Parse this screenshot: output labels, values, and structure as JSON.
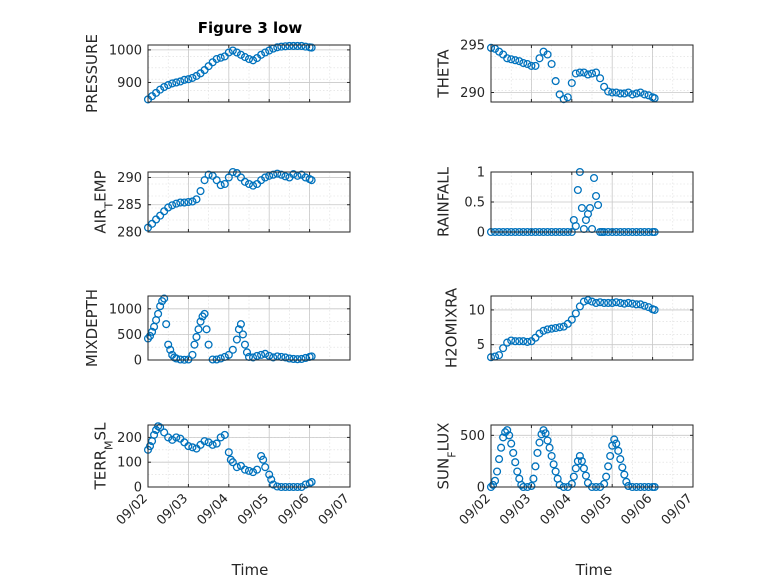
{
  "figure_title": "Figure 3 low",
  "x_axis_label": "Time",
  "x_tick_labels": [
    "09/02",
    "09/03",
    "09/04",
    "09/05",
    "09/06",
    "09/07"
  ],
  "colors": {
    "marker": "#0072BD",
    "axes": "#262626",
    "grid": "#dcdcdc"
  },
  "chart_data": [
    {
      "type": "scatter",
      "ylabel": "PRESSURE",
      "xlim": [
        0,
        5
      ],
      "ylim": [
        840,
        1015
      ],
      "yticks": [
        900,
        1000
      ],
      "grid": true,
      "x": [
        0,
        0.1,
        0.2,
        0.3,
        0.4,
        0.5,
        0.6,
        0.7,
        0.8,
        0.9,
        1.0,
        1.1,
        1.2,
        1.3,
        1.4,
        1.5,
        1.6,
        1.7,
        1.8,
        1.9,
        2.0,
        2.1,
        2.2,
        2.3,
        2.4,
        2.5,
        2.6,
        2.7,
        2.8,
        2.9,
        3.0,
        3.1,
        3.2,
        3.3,
        3.4,
        3.5,
        3.6,
        3.7,
        3.8,
        3.9,
        4.0,
        4.05
      ],
      "y": [
        848,
        858,
        868,
        878,
        886,
        892,
        897,
        900,
        903,
        908,
        910,
        914,
        920,
        928,
        938,
        950,
        962,
        972,
        976,
        980,
        992,
        998,
        992,
        985,
        978,
        972,
        968,
        975,
        985,
        992,
        998,
        1004,
        1008,
        1010,
        1011,
        1012,
        1012,
        1012,
        1012,
        1010,
        1008,
        1007
      ]
    },
    {
      "type": "scatter",
      "ylabel": "THETA",
      "xlim": [
        0,
        5
      ],
      "ylim": [
        289,
        295
      ],
      "yticks": [
        290,
        295
      ],
      "grid": true,
      "x": [
        0,
        0.1,
        0.2,
        0.3,
        0.4,
        0.5,
        0.6,
        0.7,
        0.8,
        0.9,
        1.0,
        1.1,
        1.2,
        1.3,
        1.4,
        1.5,
        1.6,
        1.7,
        1.8,
        1.9,
        2.0,
        2.1,
        2.2,
        2.3,
        2.4,
        2.5,
        2.6,
        2.7,
        2.8,
        2.9,
        3.0,
        3.1,
        3.2,
        3.3,
        3.4,
        3.5,
        3.6,
        3.7,
        3.8,
        3.9,
        4.0,
        4.05
      ],
      "y": [
        294.7,
        294.6,
        294.3,
        294.0,
        293.6,
        293.5,
        293.4,
        293.3,
        293.1,
        293.0,
        292.8,
        292.8,
        293.6,
        294.3,
        294.0,
        293.0,
        291.2,
        289.8,
        289.3,
        289.5,
        291.0,
        292.0,
        292.1,
        292.1,
        291.9,
        292.0,
        292.1,
        291.5,
        290.6,
        290.1,
        290.0,
        290.0,
        289.9,
        289.9,
        290.0,
        289.8,
        289.9,
        290.0,
        289.8,
        289.7,
        289.5,
        289.4
      ]
    },
    {
      "type": "scatter",
      "ylabel": "AIR_TEMP",
      "xlim": [
        0,
        5
      ],
      "ylim": [
        280,
        291
      ],
      "yticks": [
        280,
        285,
        290
      ],
      "grid": true,
      "x": [
        0,
        0.1,
        0.2,
        0.3,
        0.4,
        0.5,
        0.6,
        0.7,
        0.8,
        0.9,
        1.0,
        1.1,
        1.2,
        1.3,
        1.4,
        1.5,
        1.6,
        1.7,
        1.8,
        1.9,
        2.0,
        2.1,
        2.2,
        2.3,
        2.4,
        2.5,
        2.6,
        2.7,
        2.8,
        2.9,
        3.0,
        3.1,
        3.2,
        3.3,
        3.4,
        3.5,
        3.6,
        3.7,
        3.8,
        3.9,
        4.0,
        4.05
      ],
      "y": [
        280.8,
        281.5,
        282.3,
        283.0,
        283.8,
        284.5,
        284.9,
        285.2,
        285.4,
        285.4,
        285.5,
        285.6,
        286.0,
        287.5,
        289.5,
        290.5,
        290.3,
        289.5,
        288.6,
        288.8,
        290.0,
        291.0,
        290.8,
        290.0,
        289.2,
        288.8,
        288.5,
        288.8,
        289.5,
        290.0,
        290.3,
        290.5,
        290.7,
        290.5,
        290.2,
        290.0,
        290.6,
        290.3,
        290.5,
        290.0,
        289.7,
        289.5
      ]
    },
    {
      "type": "scatter",
      "ylabel": "RAINFALL",
      "xlim": [
        0,
        5
      ],
      "ylim": [
        0,
        1
      ],
      "yticks": [
        0,
        0.5,
        1
      ],
      "grid": true,
      "x": [
        0,
        0.1,
        0.2,
        0.3,
        0.4,
        0.5,
        0.6,
        0.7,
        0.8,
        0.9,
        1.0,
        1.1,
        1.2,
        1.3,
        1.4,
        1.5,
        1.6,
        1.7,
        1.8,
        1.9,
        2.0,
        2.05,
        2.1,
        2.15,
        2.2,
        2.25,
        2.3,
        2.35,
        2.4,
        2.45,
        2.5,
        2.55,
        2.6,
        2.65,
        2.7,
        2.75,
        2.8,
        2.9,
        3.0,
        3.1,
        3.2,
        3.3,
        3.4,
        3.5,
        3.6,
        3.7,
        3.8,
        3.9,
        4.0,
        4.05
      ],
      "y": [
        0,
        0,
        0,
        0,
        0,
        0,
        0,
        0,
        0,
        0,
        0,
        0,
        0,
        0,
        0,
        0,
        0,
        0,
        0,
        0,
        0,
        0.2,
        0.1,
        0.7,
        1.0,
        0.4,
        0.05,
        0.2,
        0.3,
        0.4,
        0.05,
        0.9,
        0.6,
        0.45,
        0,
        0,
        0,
        0,
        0,
        0,
        0,
        0,
        0,
        0,
        0,
        0,
        0,
        0,
        0,
        0
      ]
    },
    {
      "type": "scatter",
      "ylabel": "MIXDEPTH",
      "xlim": [
        0,
        5
      ],
      "ylim": [
        0,
        1250
      ],
      "yticks": [
        0,
        500,
        1000
      ],
      "grid": true,
      "x": [
        0,
        0.05,
        0.1,
        0.15,
        0.2,
        0.25,
        0.3,
        0.35,
        0.4,
        0.45,
        0.5,
        0.55,
        0.6,
        0.65,
        0.7,
        0.8,
        0.9,
        1.0,
        1.1,
        1.15,
        1.2,
        1.25,
        1.3,
        1.35,
        1.4,
        1.45,
        1.5,
        1.6,
        1.7,
        1.8,
        1.9,
        2.0,
        2.1,
        2.2,
        2.25,
        2.3,
        2.35,
        2.4,
        2.45,
        2.5,
        2.6,
        2.7,
        2.8,
        2.9,
        3.0,
        3.1,
        3.2,
        3.3,
        3.4,
        3.5,
        3.6,
        3.7,
        3.8,
        3.9,
        4.0,
        4.05
      ],
      "y": [
        420,
        470,
        550,
        650,
        780,
        900,
        1050,
        1150,
        1200,
        700,
        300,
        200,
        100,
        50,
        30,
        10,
        5,
        10,
        100,
        300,
        450,
        600,
        750,
        850,
        900,
        600,
        300,
        10,
        10,
        30,
        60,
        100,
        200,
        400,
        600,
        700,
        500,
        300,
        150,
        60,
        50,
        80,
        100,
        120,
        80,
        50,
        70,
        60,
        50,
        30,
        20,
        15,
        20,
        40,
        60,
        70
      ]
    },
    {
      "type": "scatter",
      "ylabel": "H2OMIXRA",
      "xlim": [
        0,
        5
      ],
      "ylim": [
        2.8,
        12
      ],
      "yticks": [
        5,
        10
      ],
      "grid": true,
      "x": [
        0,
        0.1,
        0.2,
        0.3,
        0.4,
        0.5,
        0.6,
        0.7,
        0.8,
        0.9,
        1.0,
        1.1,
        1.2,
        1.3,
        1.4,
        1.5,
        1.6,
        1.7,
        1.8,
        1.9,
        2.0,
        2.1,
        2.2,
        2.3,
        2.4,
        2.5,
        2.6,
        2.7,
        2.8,
        2.9,
        3.0,
        3.1,
        3.2,
        3.3,
        3.4,
        3.5,
        3.6,
        3.7,
        3.8,
        3.9,
        4.0,
        4.05
      ],
      "y": [
        3.2,
        3.3,
        3.5,
        4.5,
        5.3,
        5.6,
        5.5,
        5.5,
        5.5,
        5.4,
        5.5,
        6.0,
        6.6,
        7.0,
        7.2,
        7.3,
        7.4,
        7.5,
        7.6,
        8.0,
        8.6,
        9.5,
        10.5,
        11.2,
        11.4,
        11.2,
        11.0,
        11.1,
        11.0,
        11.0,
        11.0,
        11.1,
        11.0,
        10.9,
        11.0,
        10.9,
        10.8,
        10.8,
        10.6,
        10.4,
        10.1,
        10.0
      ]
    },
    {
      "type": "scatter",
      "ylabel": "TERR_MSL",
      "xlim": [
        0,
        5
      ],
      "ylim": [
        0,
        250
      ],
      "yticks": [
        0,
        100,
        200
      ],
      "grid": true,
      "x": [
        0,
        0.05,
        0.1,
        0.15,
        0.2,
        0.25,
        0.3,
        0.4,
        0.5,
        0.6,
        0.7,
        0.8,
        0.9,
        1.0,
        1.1,
        1.2,
        1.3,
        1.4,
        1.5,
        1.6,
        1.7,
        1.8,
        1.9,
        2.0,
        2.05,
        2.1,
        2.2,
        2.3,
        2.4,
        2.5,
        2.6,
        2.7,
        2.8,
        2.85,
        2.9,
        3.0,
        3.05,
        3.1,
        3.2,
        3.3,
        3.4,
        3.5,
        3.6,
        3.7,
        3.8,
        3.9,
        4.0,
        4.05
      ],
      "y": [
        150,
        165,
        185,
        210,
        230,
        245,
        240,
        220,
        200,
        190,
        200,
        195,
        180,
        165,
        160,
        155,
        170,
        185,
        180,
        170,
        175,
        200,
        210,
        140,
        110,
        100,
        80,
        85,
        70,
        65,
        60,
        70,
        125,
        110,
        80,
        50,
        30,
        10,
        2,
        0,
        0,
        0,
        0,
        0,
        0,
        10,
        15,
        20
      ]
    },
    {
      "type": "scatter",
      "ylabel": "SUN_FLUX",
      "xlim": [
        0,
        5
      ],
      "ylim": [
        0,
        600
      ],
      "yticks": [
        0,
        500
      ],
      "grid": true,
      "x": [
        0,
        0.05,
        0.1,
        0.15,
        0.2,
        0.25,
        0.3,
        0.35,
        0.4,
        0.45,
        0.5,
        0.55,
        0.6,
        0.65,
        0.7,
        0.75,
        0.8,
        0.9,
        1.0,
        1.05,
        1.1,
        1.15,
        1.2,
        1.25,
        1.3,
        1.35,
        1.4,
        1.45,
        1.5,
        1.55,
        1.6,
        1.65,
        1.7,
        1.8,
        1.9,
        2.0,
        2.05,
        2.1,
        2.15,
        2.2,
        2.25,
        2.3,
        2.35,
        2.4,
        2.5,
        2.6,
        2.7,
        2.8,
        2.85,
        2.9,
        2.95,
        3.0,
        3.05,
        3.1,
        3.15,
        3.2,
        3.25,
        3.3,
        3.35,
        3.4,
        3.5,
        3.6,
        3.7,
        3.8,
        3.9,
        4.0,
        4.05
      ],
      "y": [
        0,
        20,
        60,
        150,
        270,
        380,
        480,
        530,
        550,
        500,
        420,
        330,
        240,
        150,
        80,
        20,
        0,
        0,
        10,
        80,
        200,
        330,
        430,
        510,
        550,
        520,
        450,
        380,
        300,
        220,
        150,
        80,
        20,
        0,
        0,
        30,
        100,
        180,
        250,
        300,
        250,
        180,
        110,
        40,
        0,
        0,
        0,
        30,
        100,
        200,
        300,
        400,
        460,
        420,
        350,
        270,
        190,
        120,
        50,
        10,
        0,
        0,
        0,
        0,
        0,
        0,
        0
      ]
    }
  ]
}
